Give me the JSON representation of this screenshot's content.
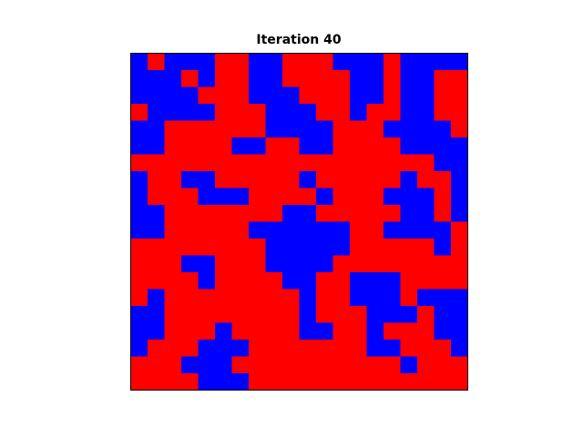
{
  "chart_data": {
    "type": "heatmap",
    "title": "Iteration 40",
    "colors": [
      "#ff0000",
      "#0000ff"
    ],
    "z": [
      [
        1,
        0,
        1,
        1,
        1,
        0,
        0,
        1,
        1,
        0,
        0,
        0,
        1,
        1,
        1,
        0,
        1,
        1,
        1,
        1
      ],
      [
        1,
        1,
        1,
        0,
        1,
        0,
        0,
        1,
        1,
        0,
        0,
        0,
        0,
        1,
        1,
        0,
        1,
        1,
        0,
        0
      ],
      [
        1,
        1,
        1,
        1,
        0,
        0,
        0,
        1,
        1,
        1,
        0,
        0,
        0,
        1,
        1,
        0,
        1,
        1,
        0,
        0
      ],
      [
        0,
        1,
        1,
        1,
        1,
        0,
        0,
        0,
        1,
        1,
        1,
        0,
        0,
        1,
        0,
        0,
        1,
        1,
        0,
        0
      ],
      [
        1,
        1,
        0,
        0,
        0,
        0,
        0,
        0,
        1,
        1,
        1,
        1,
        0,
        0,
        0,
        1,
        1,
        1,
        1,
        0
      ],
      [
        1,
        1,
        0,
        0,
        0,
        0,
        1,
        1,
        0,
        0,
        1,
        1,
        0,
        0,
        0,
        0,
        1,
        1,
        1,
        1
      ],
      [
        0,
        0,
        0,
        0,
        0,
        0,
        0,
        0,
        0,
        0,
        0,
        0,
        0,
        0,
        0,
        0,
        0,
        0,
        1,
        1
      ],
      [
        1,
        0,
        0,
        1,
        1,
        0,
        0,
        0,
        0,
        0,
        1,
        0,
        0,
        0,
        0,
        0,
        1,
        0,
        0,
        1
      ],
      [
        1,
        0,
        0,
        0,
        1,
        1,
        1,
        0,
        0,
        0,
        0,
        1,
        0,
        0,
        0,
        1,
        1,
        1,
        0,
        1
      ],
      [
        1,
        1,
        0,
        0,
        0,
        0,
        0,
        0,
        0,
        1,
        1,
        0,
        0,
        0,
        0,
        0,
        1,
        1,
        0,
        1
      ],
      [
        1,
        1,
        0,
        0,
        0,
        0,
        0,
        1,
        1,
        1,
        1,
        1,
        1,
        0,
        0,
        1,
        1,
        1,
        1,
        0
      ],
      [
        0,
        0,
        0,
        0,
        0,
        0,
        0,
        0,
        1,
        1,
        1,
        1,
        1,
        0,
        0,
        0,
        0,
        0,
        1,
        0
      ],
      [
        0,
        0,
        0,
        1,
        1,
        0,
        0,
        0,
        1,
        1,
        1,
        1,
        0,
        0,
        0,
        0,
        0,
        0,
        0,
        0
      ],
      [
        0,
        0,
        0,
        0,
        1,
        0,
        0,
        0,
        0,
        1,
        1,
        0,
        0,
        1,
        1,
        1,
        0,
        0,
        0,
        0
      ],
      [
        0,
        1,
        0,
        0,
        0,
        0,
        0,
        0,
        0,
        0,
        1,
        0,
        0,
        1,
        1,
        1,
        0,
        1,
        1,
        1
      ],
      [
        1,
        1,
        0,
        0,
        0,
        0,
        0,
        0,
        0,
        0,
        1,
        0,
        0,
        0,
        1,
        1,
        1,
        0,
        1,
        1
      ],
      [
        1,
        1,
        0,
        0,
        0,
        1,
        0,
        0,
        0,
        0,
        1,
        1,
        0,
        0,
        1,
        0,
        0,
        0,
        1,
        1
      ],
      [
        1,
        0,
        0,
        0,
        1,
        1,
        1,
        0,
        0,
        0,
        0,
        0,
        0,
        0,
        1,
        1,
        0,
        0,
        0,
        1
      ],
      [
        0,
        0,
        0,
        1,
        1,
        1,
        0,
        0,
        0,
        0,
        0,
        0,
        0,
        0,
        0,
        0,
        1,
        0,
        0,
        0
      ],
      [
        0,
        0,
        0,
        0,
        1,
        1,
        1,
        0,
        0,
        0,
        0,
        0,
        0,
        0,
        0,
        0,
        0,
        0,
        0,
        0
      ]
    ]
  }
}
